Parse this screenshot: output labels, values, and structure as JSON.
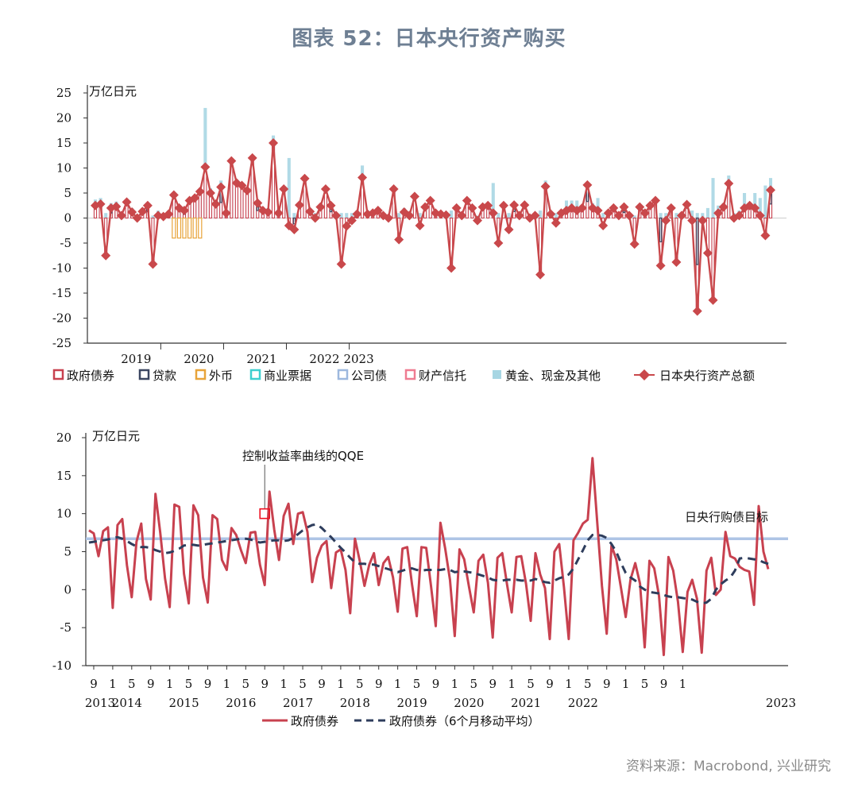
{
  "title": "图表 52：日本央行资产购买",
  "source": "资料来源：Macrobond, 兴业研究",
  "colors": {
    "gov": "#c8414f",
    "loan": "#3b4661",
    "fx": "#e8a43a",
    "cp": "#3ecfcf",
    "corp": "#9db8de",
    "trust": "#ef7c91",
    "gold": "#a7d6e3",
    "total": "#c9484b",
    "ma": "#2e3d5c",
    "target": "#aec4e6"
  },
  "chart_data": [
    {
      "type": "bar",
      "stacked": true,
      "unit_label": "万亿日元",
      "ylim": [
        -25,
        25
      ],
      "yticks": [
        25,
        20,
        15,
        10,
        5,
        0,
        -5,
        -10,
        -15,
        -20,
        -25
      ],
      "year_labels": [
        "2019",
        "2020",
        "2021",
        "2022",
        "2023"
      ],
      "x_start": "2018-12",
      "series_names": [
        "政府债券",
        "贷款",
        "外币",
        "商业票据",
        "公司债",
        "财产信托",
        "黄金、现金及其他",
        "日本央行资产总额"
      ],
      "total": [
        2.5,
        2.8,
        -7.5,
        2,
        2.3,
        0.5,
        3.2,
        1.2,
        0,
        1.3,
        2.5,
        -9.2,
        0.5,
        0.3,
        0.8,
        4.6,
        2,
        1.5,
        3.5,
        4,
        5.3,
        10.2,
        5,
        2.8,
        6.2,
        1,
        11.4,
        7,
        6.5,
        5.5,
        12,
        3,
        1.5,
        1.2,
        15,
        1,
        5.8,
        -1.5,
        -2.3,
        2.6,
        7.9,
        1.3,
        0,
        2.2,
        5.8,
        2.5,
        0.5,
        -9.2,
        -1.6,
        -0.5,
        0.8,
        8.1,
        0.8,
        1,
        1.5,
        0.5,
        0,
        5.8,
        -4.3,
        1.2,
        0.5,
        4.3,
        -1.5,
        2.2,
        3.5,
        1,
        0.8,
        0.6,
        -10,
        2,
        0.5,
        3.5,
        2,
        -0.5,
        2.2,
        2.5,
        1,
        -5,
        2.5,
        -2.3,
        2.6,
        0.5,
        2.6,
        0,
        0.5,
        -11.3,
        6.3,
        0.8,
        -1,
        1,
        1.5,
        2,
        1.5,
        2,
        6.6,
        2,
        1.5,
        -1.5,
        1,
        2,
        0.5,
        2.2,
        0.5,
        -5.2,
        2.2,
        1,
        2.5,
        3.5,
        -9.5,
        -0.5,
        2,
        -8.8,
        0.5,
        2.7,
        -0.5,
        -18.6,
        -0.5,
        -7,
        -16.4,
        1,
        2.2,
        6.9,
        0,
        0.5,
        2,
        2.5,
        2,
        0.5,
        -3.5,
        5.6
      ],
      "gold_other": [
        3.7,
        4,
        1,
        3,
        3.3,
        1,
        3.5,
        2,
        0.5,
        2,
        3,
        0.5,
        1.5,
        1,
        1.5,
        4.6,
        2,
        2,
        4,
        4,
        5.3,
        22,
        6,
        3,
        7.5,
        1.5,
        11.4,
        7.5,
        7,
        6,
        12,
        3.5,
        2,
        2,
        16.5,
        2,
        6,
        12,
        1,
        3,
        8,
        2,
        1,
        2.5,
        6,
        3,
        1,
        1,
        1,
        1,
        1.5,
        10.5,
        1,
        1.5,
        2,
        1,
        0.5,
        6,
        1,
        2,
        1,
        4.5,
        1,
        2.5,
        3.5,
        1.5,
        1,
        1,
        1.5,
        2.5,
        1,
        3.5,
        2.5,
        0.5,
        2.5,
        2.5,
        7,
        1,
        3,
        1,
        3,
        1,
        3,
        0.5,
        1,
        1.5,
        7.5,
        1,
        1,
        1,
        3.5,
        3.5,
        3.5,
        2.5,
        7,
        3,
        4,
        1,
        1.5,
        2.5,
        1,
        2.5,
        1,
        0.5,
        2.5,
        1.5,
        3,
        4,
        1,
        1,
        2.5,
        1,
        1,
        3,
        1.5,
        1,
        1,
        2,
        8,
        2.5,
        3,
        8.5,
        1,
        1.5,
        5,
        3,
        5,
        4,
        6.5,
        8
      ]
    },
    {
      "type": "line",
      "unit_label": "万亿日元",
      "ylim": [
        -10,
        20
      ],
      "yticks": [
        20,
        15,
        10,
        5,
        0,
        -5,
        -10
      ],
      "month_ticks": [
        "9",
        "1",
        "5",
        "9",
        "1",
        "5",
        "9",
        "1",
        "5",
        "9",
        "1",
        "5",
        "9",
        "1",
        "5",
        "9",
        "1",
        "5",
        "9",
        "1",
        "5",
        "9",
        "1",
        "5",
        "9",
        "1",
        "5",
        "9",
        "1",
        "5",
        "9",
        "1"
      ],
      "year_labels": [
        "2013",
        "2014",
        "2015",
        "2016",
        "2017",
        "2018",
        "2019",
        "2020",
        "2021",
        "2022",
        "2023"
      ],
      "x_start": "2013-08",
      "annotation": "控制收益率曲线的QQE",
      "target_label": "日央行购债目标",
      "target_value": 6.7,
      "series": [
        {
          "name": "政府债券",
          "values": [
            7.8,
            7.4,
            4.4,
            7.7,
            8.2,
            -2.4,
            8.5,
            9.3,
            3.2,
            -1,
            6.3,
            8.7,
            1.4,
            -1.3,
            12.6,
            7.5,
            1.5,
            -2.3,
            11.2,
            10.9,
            2.1,
            -1.8,
            11.1,
            9.8,
            1.6,
            -1.7,
            9.8,
            9.3,
            3.9,
            2.6,
            8.1,
            7.2,
            5.2,
            3.5,
            7.5,
            7.6,
            3.3,
            0.6,
            12.9,
            7.9,
            3.9,
            9.7,
            11.3,
            6,
            10,
            10.2,
            7.6,
            1,
            4.2,
            5.8,
            6.4,
            0.2,
            4.9,
            5.3,
            2.6,
            -3.1,
            6.7,
            3.8,
            0.5,
            3.3,
            4.8,
            0.6,
            3.5,
            4.3,
            1.6,
            -2.9,
            5.4,
            5.6,
            0.7,
            -3.5,
            5.6,
            5.5,
            0.5,
            -4.8,
            8.8,
            5.4,
            1.3,
            -6.1,
            5.3,
            4,
            0.4,
            -3,
            3.8,
            4.6,
            0.9,
            -6.3,
            4.2,
            4.8,
            0.7,
            -3,
            4.3,
            4.4,
            0.8,
            -4.1,
            4.8,
            2,
            0.2,
            -6.5,
            5,
            6,
            0.3,
            -6.5,
            6.5,
            7.5,
            8.7,
            9.2,
            17.3,
            8.8,
            0.5,
            -5.8,
            5.8,
            4,
            0.2,
            -3.6,
            1.3,
            3.5,
            0.8,
            -7.6,
            3.8,
            2.8,
            -0.8,
            -8.6,
            4.3,
            2.5,
            -1.6,
            -8.2,
            -0.3,
            1.3,
            -1.2,
            -8.3,
            2.5,
            4.2,
            -0.7,
            0,
            7.6,
            4.4,
            4.1,
            3,
            2.6,
            2.4,
            -2,
            11,
            5,
            2.7
          ]
        },
        {
          "name": "政府债券（6个月移动平均）",
          "values": [
            6.2,
            6.3,
            6.4,
            6.5,
            6.6,
            6.8,
            6.9,
            6.7,
            6.4,
            6,
            5.7,
            5.6,
            5.6,
            5.5,
            5.2,
            5,
            4.8,
            4.9,
            5.1,
            5.4,
            5.8,
            5.9,
            5.9,
            5.8,
            5.9,
            6,
            6.1,
            6.2,
            6.3,
            6.4,
            6.5,
            6.6,
            6.7,
            6.7,
            6.6,
            6.4,
            6.2,
            6.3,
            6.4,
            6.5,
            6.5,
            6.4,
            6.5,
            6.8,
            7.3,
            7.8,
            8.2,
            8.5,
            8.6,
            8.1,
            7.5,
            6.9,
            6.2,
            5.5,
            4.9,
            4.2,
            3.6,
            3.4,
            3.4,
            3.3,
            3.3,
            3.1,
            2.9,
            2.7,
            2.5,
            2.3,
            2.5,
            2.7,
            2.8,
            2.6,
            2.5,
            2.6,
            2.6,
            2.6,
            2.6,
            2.7,
            2.6,
            2.3,
            2.4,
            2.4,
            2.3,
            2.2,
            2,
            1.8,
            1.6,
            1.3,
            1.2,
            1.2,
            1.3,
            1.3,
            1.3,
            1.2,
            1.2,
            1.2,
            1.4,
            1.2,
            1,
            0.9,
            1.2,
            1.5,
            1.7,
            2,
            2.8,
            4,
            5.2,
            6.5,
            7.2,
            7.2,
            7.1,
            6.8,
            6,
            5,
            3.5,
            2.2,
            1.6,
            1.2,
            0.4,
            0,
            -0.3,
            -0.4,
            -0.5,
            -0.7,
            -0.9,
            -1,
            -1,
            -1.1,
            -1.2,
            -1.3,
            -1.6,
            -1.8,
            -1.7,
            -1.2,
            0,
            0.7,
            1.2,
            1.6,
            2.5,
            4.1,
            4.2,
            4.1,
            4,
            3.9,
            3.6,
            3.4,
            3.2
          ]
        }
      ]
    }
  ]
}
